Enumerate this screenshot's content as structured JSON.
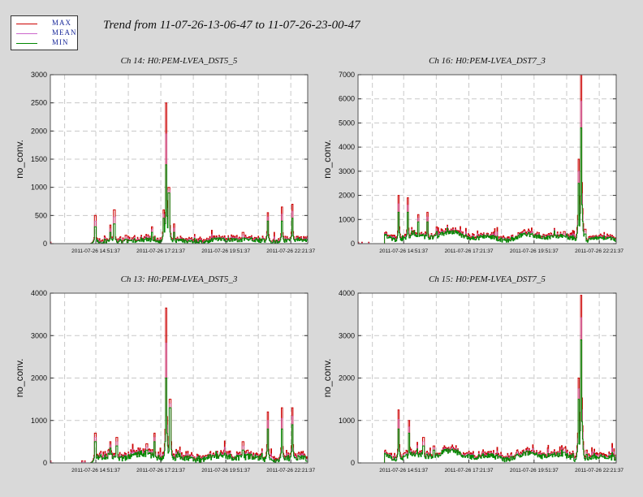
{
  "title": "Trend from 11-07-26-13-06-47 to 11-07-26-23-00-47",
  "legend": [
    {
      "label": "MAX",
      "color": "#cc0000"
    },
    {
      "label": "MEAN",
      "color": "#cc66cc"
    },
    {
      "label": "MIN",
      "color": "#008800"
    }
  ],
  "chart_data": [
    {
      "type": "line",
      "title": "Ch 14: H0:PEM-LVEA_DST5_5",
      "ylabel": "no_conv.",
      "ylim": [
        0,
        3000
      ],
      "yticks": [
        0,
        500,
        1000,
        1500,
        2000,
        2500,
        3000
      ],
      "xlim": [
        0,
        9.9
      ],
      "xticks": [
        1.75,
        4.25,
        6.75,
        9.25
      ],
      "xtick_labels": [
        "2011-07-26 14:51:37",
        "2011-07-26 17:21:37",
        "2011-07-26 19:51:37",
        "2011-07-26 22:21:37"
      ],
      "grid": true,
      "series_names": [
        "MAX",
        "MEAN",
        "MIN"
      ],
      "profile": {
        "start": 1.7,
        "base_early": 40,
        "base_late": 60,
        "noise": 90,
        "peaks": [
          {
            "x": 1.72,
            "max": 500,
            "min": 300
          },
          {
            "x": 2.3,
            "max": 330,
            "min": 200
          },
          {
            "x": 2.45,
            "max": 600,
            "min": 350
          },
          {
            "x": 2.9,
            "max": 150,
            "min": 80
          },
          {
            "x": 3.9,
            "max": 300,
            "min": 200
          },
          {
            "x": 4.35,
            "max": 600,
            "min": 450
          },
          {
            "x": 4.45,
            "max": 2500,
            "min": 1400
          },
          {
            "x": 4.55,
            "max": 1000,
            "min": 900
          },
          {
            "x": 4.75,
            "max": 350,
            "min": 200
          },
          {
            "x": 7.4,
            "max": 200,
            "min": 100
          },
          {
            "x": 8.35,
            "max": 550,
            "min": 400
          },
          {
            "x": 8.9,
            "max": 650,
            "min": 400
          },
          {
            "x": 9.3,
            "max": 700,
            "min": 450
          }
        ]
      }
    },
    {
      "type": "line",
      "title": "Ch 16: H0:PEM-LVEA_DST7_3",
      "ylabel": "no_conv.",
      "ylim": [
        0,
        7000
      ],
      "yticks": [
        0,
        1000,
        2000,
        3000,
        4000,
        5000,
        6000,
        7000
      ],
      "xlim": [
        0,
        9.9
      ],
      "xticks": [
        1.75,
        4.25,
        6.75,
        9.25
      ],
      "xtick_labels": [
        "2011-07-26 14:51:37",
        "2011-07-26 17:21:37",
        "2011-07-26 19:51:37",
        "2011-07-26 22:21:37"
      ],
      "grid": true,
      "series_names": [
        "MAX",
        "MEAN",
        "MIN"
      ],
      "profile": {
        "start": 1.0,
        "base_early": 350,
        "base_late": 200,
        "noise": 200,
        "peaks": [
          {
            "x": 1.55,
            "max": 2000,
            "min": 1300
          },
          {
            "x": 1.9,
            "max": 1900,
            "min": 1300
          },
          {
            "x": 2.3,
            "max": 1200,
            "min": 900
          },
          {
            "x": 2.65,
            "max": 1300,
            "min": 900
          },
          {
            "x": 3.0,
            "max": 700,
            "min": 500
          },
          {
            "x": 7.9,
            "max": 500,
            "min": 300
          },
          {
            "x": 8.55,
            "max": 7000,
            "min": 4800
          },
          {
            "x": 8.45,
            "max": 3500,
            "min": 2500
          },
          {
            "x": 8.7,
            "max": 600,
            "min": 400
          }
        ]
      }
    },
    {
      "type": "line",
      "title": "Ch 13: H0:PEM-LVEA_DST5_3",
      "ylabel": "no_conv.",
      "ylim": [
        0,
        4000
      ],
      "yticks": [
        0,
        1000,
        2000,
        3000,
        4000
      ],
      "xlim": [
        0,
        9.9
      ],
      "xticks": [
        1.75,
        4.25,
        6.75,
        9.25
      ],
      "xtick_labels": [
        "2011-07-26 14:51:37",
        "2011-07-26 17:21:37",
        "2011-07-26 19:51:37",
        "2011-07-26 22:21:37"
      ],
      "grid": true,
      "series_names": [
        "MAX",
        "MEAN",
        "MIN"
      ],
      "profile": {
        "start": 1.7,
        "base_early": 150,
        "base_late": 100,
        "noise": 160,
        "peaks": [
          {
            "x": 1.72,
            "max": 700,
            "min": 500
          },
          {
            "x": 2.3,
            "max": 500,
            "min": 350
          },
          {
            "x": 2.55,
            "max": 600,
            "min": 400
          },
          {
            "x": 3.7,
            "max": 450,
            "min": 300
          },
          {
            "x": 4.0,
            "max": 700,
            "min": 500
          },
          {
            "x": 4.45,
            "max": 3650,
            "min": 2000
          },
          {
            "x": 4.6,
            "max": 1500,
            "min": 1300
          },
          {
            "x": 7.4,
            "max": 500,
            "min": 300
          },
          {
            "x": 8.35,
            "max": 1200,
            "min": 800
          },
          {
            "x": 8.9,
            "max": 1300,
            "min": 800
          },
          {
            "x": 9.3,
            "max": 1300,
            "min": 900
          }
        ]
      }
    },
    {
      "type": "line",
      "title": "Ch 15: H0:PEM-LVEA_DST7_5",
      "ylabel": "no_conv.",
      "ylim": [
        0,
        4000
      ],
      "yticks": [
        0,
        1000,
        2000,
        3000,
        4000
      ],
      "xlim": [
        0,
        9.9
      ],
      "xticks": [
        1.75,
        4.25,
        6.75,
        9.25
      ],
      "xtick_labels": [
        "2011-07-26 14:51:37",
        "2011-07-26 17:21:37",
        "2011-07-26 19:51:37",
        "2011-07-26 22:21:37"
      ],
      "grid": true,
      "series_names": [
        "MAX",
        "MEAN",
        "MIN"
      ],
      "profile": {
        "start": 1.0,
        "base_early": 200,
        "base_late": 130,
        "noise": 140,
        "peaks": [
          {
            "x": 1.55,
            "max": 1250,
            "min": 800
          },
          {
            "x": 1.95,
            "max": 1000,
            "min": 700
          },
          {
            "x": 2.5,
            "max": 600,
            "min": 400
          },
          {
            "x": 2.9,
            "max": 400,
            "min": 300
          },
          {
            "x": 7.9,
            "max": 350,
            "min": 250
          },
          {
            "x": 8.55,
            "max": 3950,
            "min": 2900
          },
          {
            "x": 8.45,
            "max": 2000,
            "min": 1500
          },
          {
            "x": 8.75,
            "max": 300,
            "min": 200
          }
        ]
      }
    }
  ]
}
